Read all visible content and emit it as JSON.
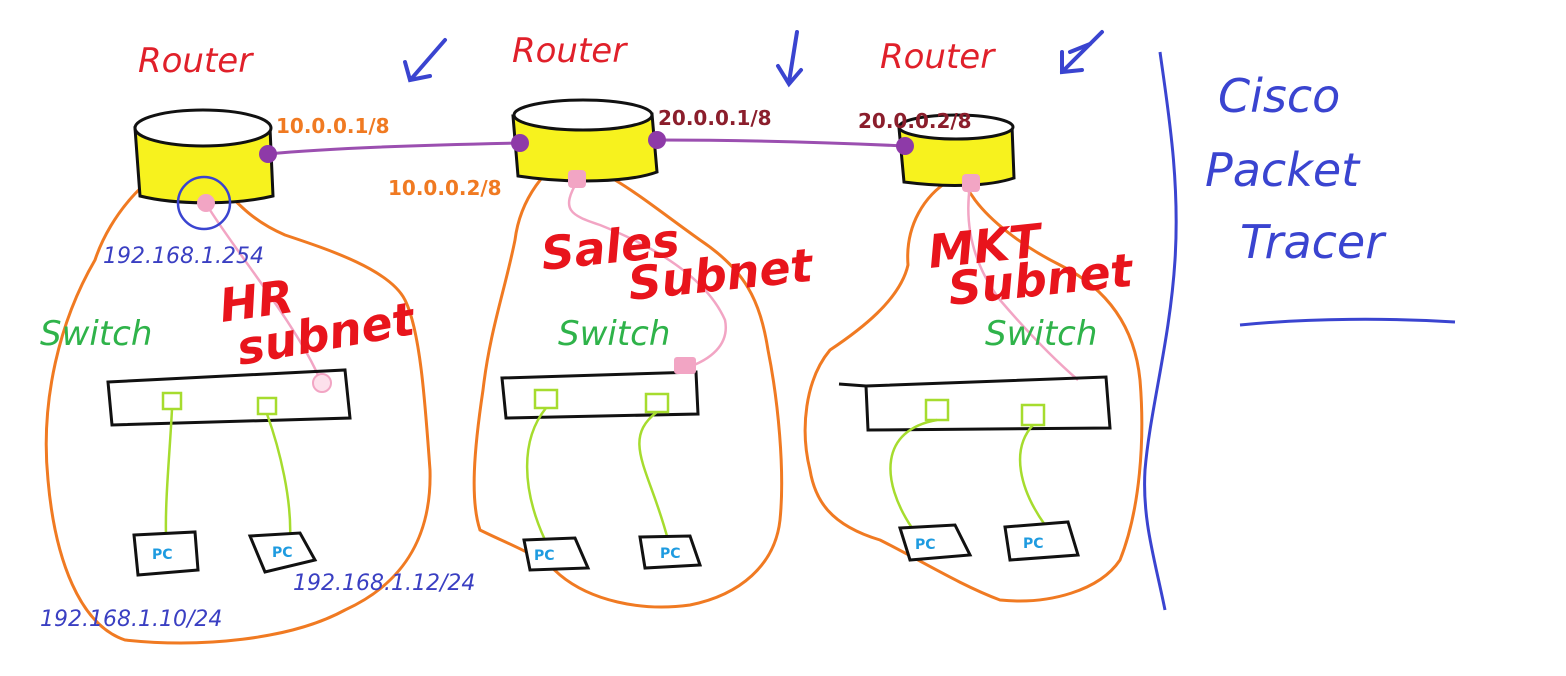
{
  "colors": {
    "router_fill": "#f7f21e",
    "outline": "#111111",
    "wan_link": "#9b4fb0",
    "port": "#8e3aa8",
    "lan_link": "#a6dc2e",
    "router_switch_link": "#f2a5c4",
    "subnet_boundary": "#f07a22",
    "subnet_label": "#e8141c",
    "router_label": "#e0202a",
    "switch_label": "#2fb34a",
    "host_ip": "#3a3fc2",
    "arrow": "#3a44d0",
    "divider": "#3a44d0"
  },
  "routers": [
    {
      "label": "Router",
      "ip_left": "",
      "ip_right": "10.0.0.1/8"
    },
    {
      "label": "Router",
      "ip_left": "10.0.0.2/8",
      "ip_right": "20.0.0.1/8"
    },
    {
      "label": "Router",
      "ip_left": "20.0.0.2/8",
      "ip_right": ""
    }
  ],
  "subnets": [
    {
      "name_line1": "HR",
      "name_line2": "subnet",
      "switch_label": "Switch",
      "gateway_ip": "192.168.1.254",
      "pcs": [
        {
          "label": "PC",
          "ip": "192.168.1.10/24"
        },
        {
          "label": "PC",
          "ip": "192.168.1.12/24"
        }
      ]
    },
    {
      "name_line1": "Sales",
      "name_line2": "Subnet",
      "switch_label": "Switch",
      "pcs": [
        {
          "label": "PC"
        },
        {
          "label": "PC"
        }
      ]
    },
    {
      "name_line1": "MKT",
      "name_line2": "Subnet",
      "switch_label": "Switch",
      "pcs": [
        {
          "label": "PC"
        },
        {
          "label": "PC"
        }
      ]
    }
  ],
  "sidebar": {
    "line1": "Cisco",
    "line2": "Packet",
    "line3": "Tracer"
  }
}
